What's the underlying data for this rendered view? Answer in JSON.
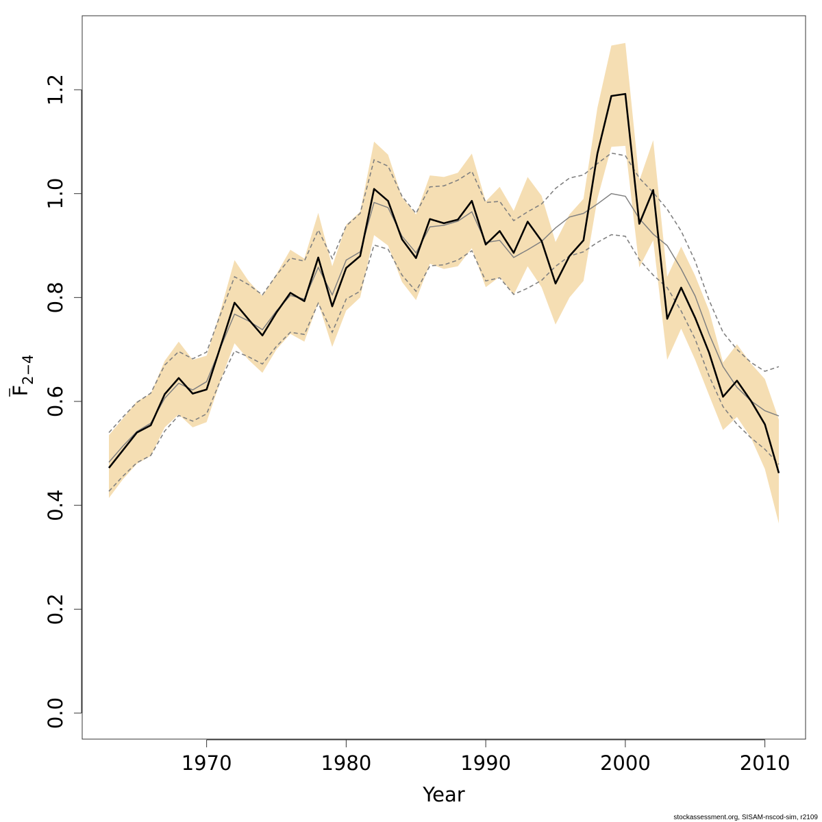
{
  "chart_data": {
    "type": "line",
    "xlabel": "Year",
    "ylabel": {
      "base": "F",
      "subscript": "2−4"
    },
    "xlim": [
      1962,
      2013
    ],
    "ylim": [
      -0.05,
      1.37
    ],
    "xticks": [
      1970,
      1980,
      1990,
      2000,
      2010
    ],
    "yticks": [
      0.0,
      0.2,
      0.4,
      0.6,
      0.8,
      1.0,
      1.2
    ],
    "x": [
      1963,
      1964,
      1965,
      1966,
      1967,
      1968,
      1969,
      1970,
      1971,
      1972,
      1973,
      1974,
      1975,
      1976,
      1977,
      1978,
      1979,
      1980,
      1981,
      1982,
      1983,
      1984,
      1985,
      1986,
      1987,
      1988,
      1989,
      1990,
      1991,
      1992,
      1993,
      1994,
      1995,
      1996,
      1997,
      1998,
      1999,
      2000,
      2001,
      2002,
      2003,
      2004,
      2005,
      2006,
      2007,
      2008,
      2009,
      2010,
      2011
    ],
    "series": [
      {
        "role": "estimate",
        "color": "#000000",
        "style": "solid-thick",
        "values": [
          0.472,
          0.506,
          0.54,
          0.554,
          0.614,
          0.645,
          0.615,
          0.623,
          0.706,
          0.79,
          0.758,
          0.727,
          0.771,
          0.809,
          0.793,
          0.877,
          0.783,
          0.857,
          0.88,
          1.009,
          0.986,
          0.912,
          0.876,
          0.951,
          0.943,
          0.95,
          0.986,
          0.902,
          0.928,
          0.886,
          0.946,
          0.909,
          0.827,
          0.88,
          0.91,
          1.077,
          1.188,
          1.192,
          0.942,
          1.007,
          0.759,
          0.819,
          0.761,
          0.694,
          0.609,
          0.64,
          0.601,
          0.556,
          0.462
        ]
      },
      {
        "role": "ci-lower",
        "color": "#f5deb3",
        "style": "band",
        "values": [
          0.414,
          0.45,
          0.48,
          0.495,
          0.55,
          0.575,
          0.55,
          0.56,
          0.64,
          0.712,
          0.68,
          0.655,
          0.7,
          0.73,
          0.715,
          0.79,
          0.705,
          0.775,
          0.8,
          0.92,
          0.9,
          0.83,
          0.795,
          0.865,
          0.855,
          0.86,
          0.895,
          0.82,
          0.84,
          0.805,
          0.86,
          0.82,
          0.748,
          0.8,
          0.832,
          0.99,
          1.09,
          1.092,
          0.858,
          0.91,
          0.68,
          0.74,
          0.68,
          0.612,
          0.545,
          0.57,
          0.53,
          0.47,
          0.365
        ]
      },
      {
        "role": "ci-upper",
        "color": "#f5deb3",
        "style": "band",
        "values": [
          0.535,
          0.567,
          0.6,
          0.615,
          0.678,
          0.715,
          0.68,
          0.688,
          0.775,
          0.872,
          0.832,
          0.803,
          0.845,
          0.892,
          0.875,
          0.963,
          0.86,
          0.94,
          0.965,
          1.1,
          1.075,
          0.993,
          0.96,
          1.035,
          1.032,
          1.04,
          1.077,
          0.985,
          1.013,
          0.967,
          1.032,
          0.996,
          0.907,
          0.96,
          0.99,
          1.165,
          1.285,
          1.29,
          1.025,
          1.103,
          0.84,
          0.898,
          0.842,
          0.775,
          0.675,
          0.71,
          0.673,
          0.643,
          0.565
        ]
      },
      {
        "role": "reference-estimate",
        "color": "#808080",
        "style": "solid-thin",
        "values": [
          0.483,
          0.514,
          0.542,
          0.558,
          0.606,
          0.635,
          0.622,
          0.638,
          0.704,
          0.768,
          0.755,
          0.738,
          0.774,
          0.804,
          0.797,
          0.858,
          0.805,
          0.872,
          0.888,
          0.983,
          0.973,
          0.918,
          0.886,
          0.936,
          0.939,
          0.947,
          0.965,
          0.906,
          0.91,
          0.877,
          0.892,
          0.908,
          0.934,
          0.955,
          0.962,
          0.98,
          1.0,
          0.995,
          0.952,
          0.922,
          0.9,
          0.855,
          0.803,
          0.73,
          0.667,
          0.627,
          0.601,
          0.582,
          0.572
        ]
      },
      {
        "role": "reference-lower",
        "color": "#808080",
        "style": "dashed",
        "values": [
          0.427,
          0.456,
          0.482,
          0.496,
          0.543,
          0.573,
          0.562,
          0.576,
          0.641,
          0.697,
          0.686,
          0.672,
          0.706,
          0.733,
          0.729,
          0.789,
          0.733,
          0.797,
          0.812,
          0.901,
          0.893,
          0.843,
          0.812,
          0.861,
          0.863,
          0.872,
          0.89,
          0.832,
          0.838,
          0.806,
          0.818,
          0.833,
          0.86,
          0.88,
          0.888,
          0.906,
          0.921,
          0.918,
          0.873,
          0.843,
          0.819,
          0.774,
          0.72,
          0.649,
          0.59,
          0.556,
          0.53,
          0.508,
          0.479
        ]
      },
      {
        "role": "reference-upper",
        "color": "#808080",
        "style": "dashed",
        "values": [
          0.54,
          0.57,
          0.598,
          0.616,
          0.67,
          0.696,
          0.682,
          0.695,
          0.768,
          0.84,
          0.825,
          0.805,
          0.843,
          0.876,
          0.87,
          0.93,
          0.875,
          0.938,
          0.962,
          1.065,
          1.053,
          0.995,
          0.962,
          1.013,
          1.015,
          1.026,
          1.043,
          0.983,
          0.985,
          0.948,
          0.965,
          0.98,
          1.01,
          1.03,
          1.036,
          1.058,
          1.078,
          1.073,
          1.03,
          1.002,
          0.97,
          0.928,
          0.87,
          0.795,
          0.733,
          0.7,
          0.675,
          0.658,
          0.667
        ]
      }
    ]
  },
  "footer": "stockassessment.org, SISAM-nscod-sim, r2109"
}
